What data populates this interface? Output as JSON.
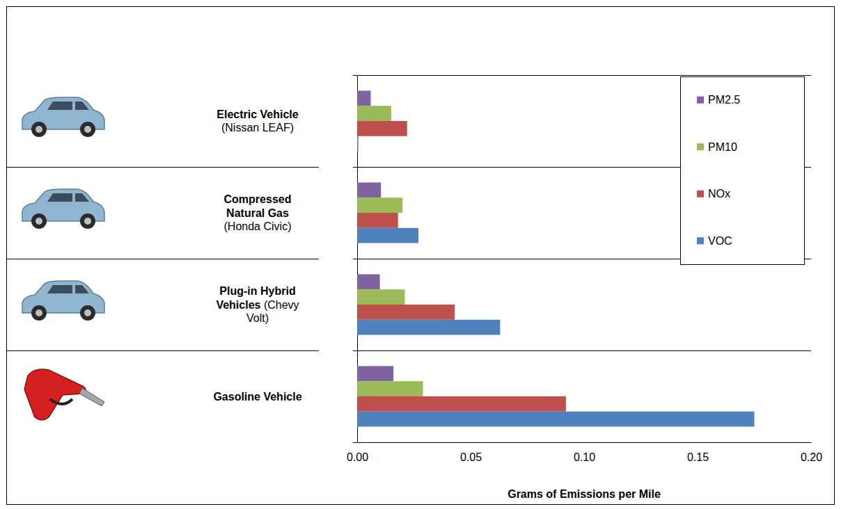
{
  "chart_data": {
    "type": "bar",
    "orientation": "horizontal",
    "categories": [
      "Electric Vehicle (Nissan LEAF)",
      "Compressed Natural Gas (Honda Civic)",
      "Plug-in Hybrid Vehicles (Chevy Volt)",
      "Gasoline Vehicle"
    ],
    "series": [
      {
        "name": "PM2.5",
        "color": "#8064A2",
        "values": [
          0.006,
          0.0105,
          0.01,
          0.016
        ]
      },
      {
        "name": "PM10",
        "color": "#9BBB59",
        "values": [
          0.015,
          0.02,
          0.021,
          0.029
        ]
      },
      {
        "name": "NOx",
        "color": "#C0504D",
        "values": [
          0.022,
          0.018,
          0.043,
          0.092
        ]
      },
      {
        "name": "VOC",
        "color": "#4F81BD",
        "values": [
          0.0005,
          0.027,
          0.063,
          0.175
        ]
      }
    ],
    "xlim": [
      0,
      0.2
    ],
    "xticks": [
      {
        "value": 0,
        "label": "0.00"
      },
      {
        "value": 0.05,
        "label": "0.05"
      },
      {
        "value": 0.1,
        "label": "0.10"
      },
      {
        "value": 0.15,
        "label": "0.15"
      },
      {
        "value": 0.2,
        "label": "0.20"
      }
    ],
    "xlabel": "Grams of Emissions per Mile",
    "legend": "top-right",
    "grid": true
  }
}
